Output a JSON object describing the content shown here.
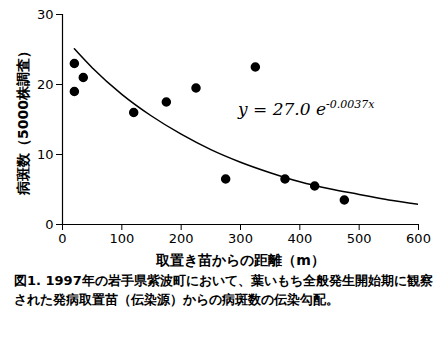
{
  "chart_data": {
    "type": "scatter",
    "x_label": "取置き苗からの距離（m）",
    "y_label": "病斑数（5000株調査）",
    "caption": "図1. 1997年の岩手県紫波町において、葉いもち全般発生開始期に観察された発病取置苗（伝染源）からの病斑数の伝染勾配。",
    "annotations": [
      {
        "text": "y = 27.0 e",
        "superscript": "-0.0037x"
      }
    ],
    "series": [
      {
        "type": "scatter",
        "marker": "circle",
        "color": "#000000",
        "x": [
          20,
          20,
          35,
          120,
          175,
          225,
          275,
          325,
          375,
          425,
          475
        ],
        "values": [
          23,
          19,
          21,
          16,
          17.5,
          19.5,
          6.5,
          22.5,
          6.5,
          5.5,
          3.5
        ]
      },
      {
        "type": "line",
        "line_style": "solid",
        "color": "#000000",
        "x": [
          20,
          50,
          100,
          150,
          200,
          250,
          300,
          350,
          400,
          450,
          500,
          550,
          600
        ],
        "values": [
          25.1,
          22.4,
          18.6,
          15.5,
          12.9,
          10.7,
          8.9,
          7.4,
          6.1,
          5.1,
          4.3,
          3.5,
          2.9
        ]
      }
    ],
    "xlim": [
      0,
      600
    ],
    "xticks": [
      0,
      100,
      200,
      300,
      400,
      500,
      600
    ],
    "ylim": [
      0,
      30
    ],
    "yticks": [
      0,
      10,
      20,
      30
    ],
    "grid": false
  }
}
